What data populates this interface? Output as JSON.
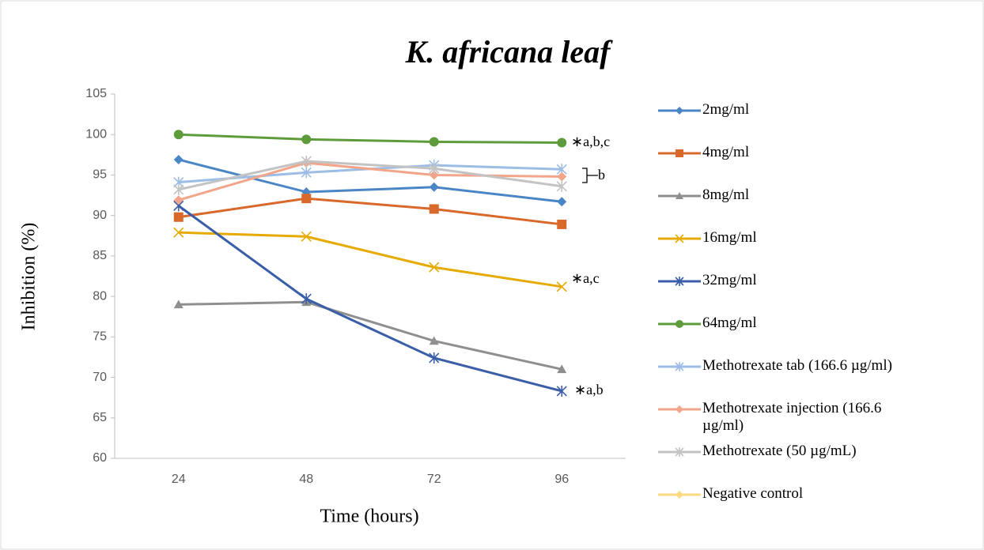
{
  "chart_data": {
    "type": "line",
    "title": "K. africana leaf",
    "x_label": "Time (hours)",
    "y_label": "Inhibition (%)",
    "categories": [
      "24",
      "48",
      "72",
      "96"
    ],
    "ylim": [
      60,
      105
    ],
    "yticks": [
      60,
      65,
      70,
      75,
      80,
      85,
      90,
      95,
      100,
      105
    ],
    "grid": false,
    "legend": "right",
    "series": [
      {
        "name": "2mg/ml",
        "color": "#4a86c5",
        "marker": "diamond",
        "values": [
          96.9,
          92.9,
          93.5,
          91.7
        ]
      },
      {
        "name": "4mg/ml",
        "color": "#d9692a",
        "marker": "square",
        "values": [
          89.8,
          92.1,
          90.8,
          88.9
        ]
      },
      {
        "name": "8mg/ml",
        "color": "#8f8f8f",
        "marker": "triangle",
        "values": [
          79.0,
          79.3,
          74.5,
          71.0
        ]
      },
      {
        "name": "16mg/ml",
        "color": "#e6ab02",
        "marker": "x",
        "values": [
          87.9,
          87.4,
          83.6,
          81.2
        ]
      },
      {
        "name": "32mg/ml",
        "color": "#3a5ea8",
        "marker": "star",
        "values": [
          91.2,
          79.7,
          72.4,
          68.3
        ]
      },
      {
        "name": "64mg/ml",
        "color": "#5e9c3b",
        "marker": "circle",
        "values": [
          100.0,
          99.4,
          99.1,
          99.0
        ]
      },
      {
        "name": "Methotrexate tab (166.6 µg/ml)",
        "color": "#9dbde4",
        "marker": "star",
        "values": [
          94.1,
          95.3,
          96.2,
          95.7
        ]
      },
      {
        "name": "Methotrexate injection (166.6 µg/ml)",
        "color": "#f2a58a",
        "marker": "diamond",
        "values": [
          91.9,
          96.5,
          95.0,
          94.8
        ]
      },
      {
        "name": "Methotrexate (50 µg/mL)",
        "color": "#c3c3c3",
        "marker": "star",
        "values": [
          93.2,
          96.7,
          95.8,
          93.6
        ]
      },
      {
        "name": "Negative control",
        "color": "#ffd980",
        "marker": "diamond",
        "values": [
          null,
          null,
          null,
          null
        ]
      }
    ],
    "annotations": [
      "∗a,b,c",
      "b",
      "∗a,c",
      "∗a,b"
    ]
  }
}
